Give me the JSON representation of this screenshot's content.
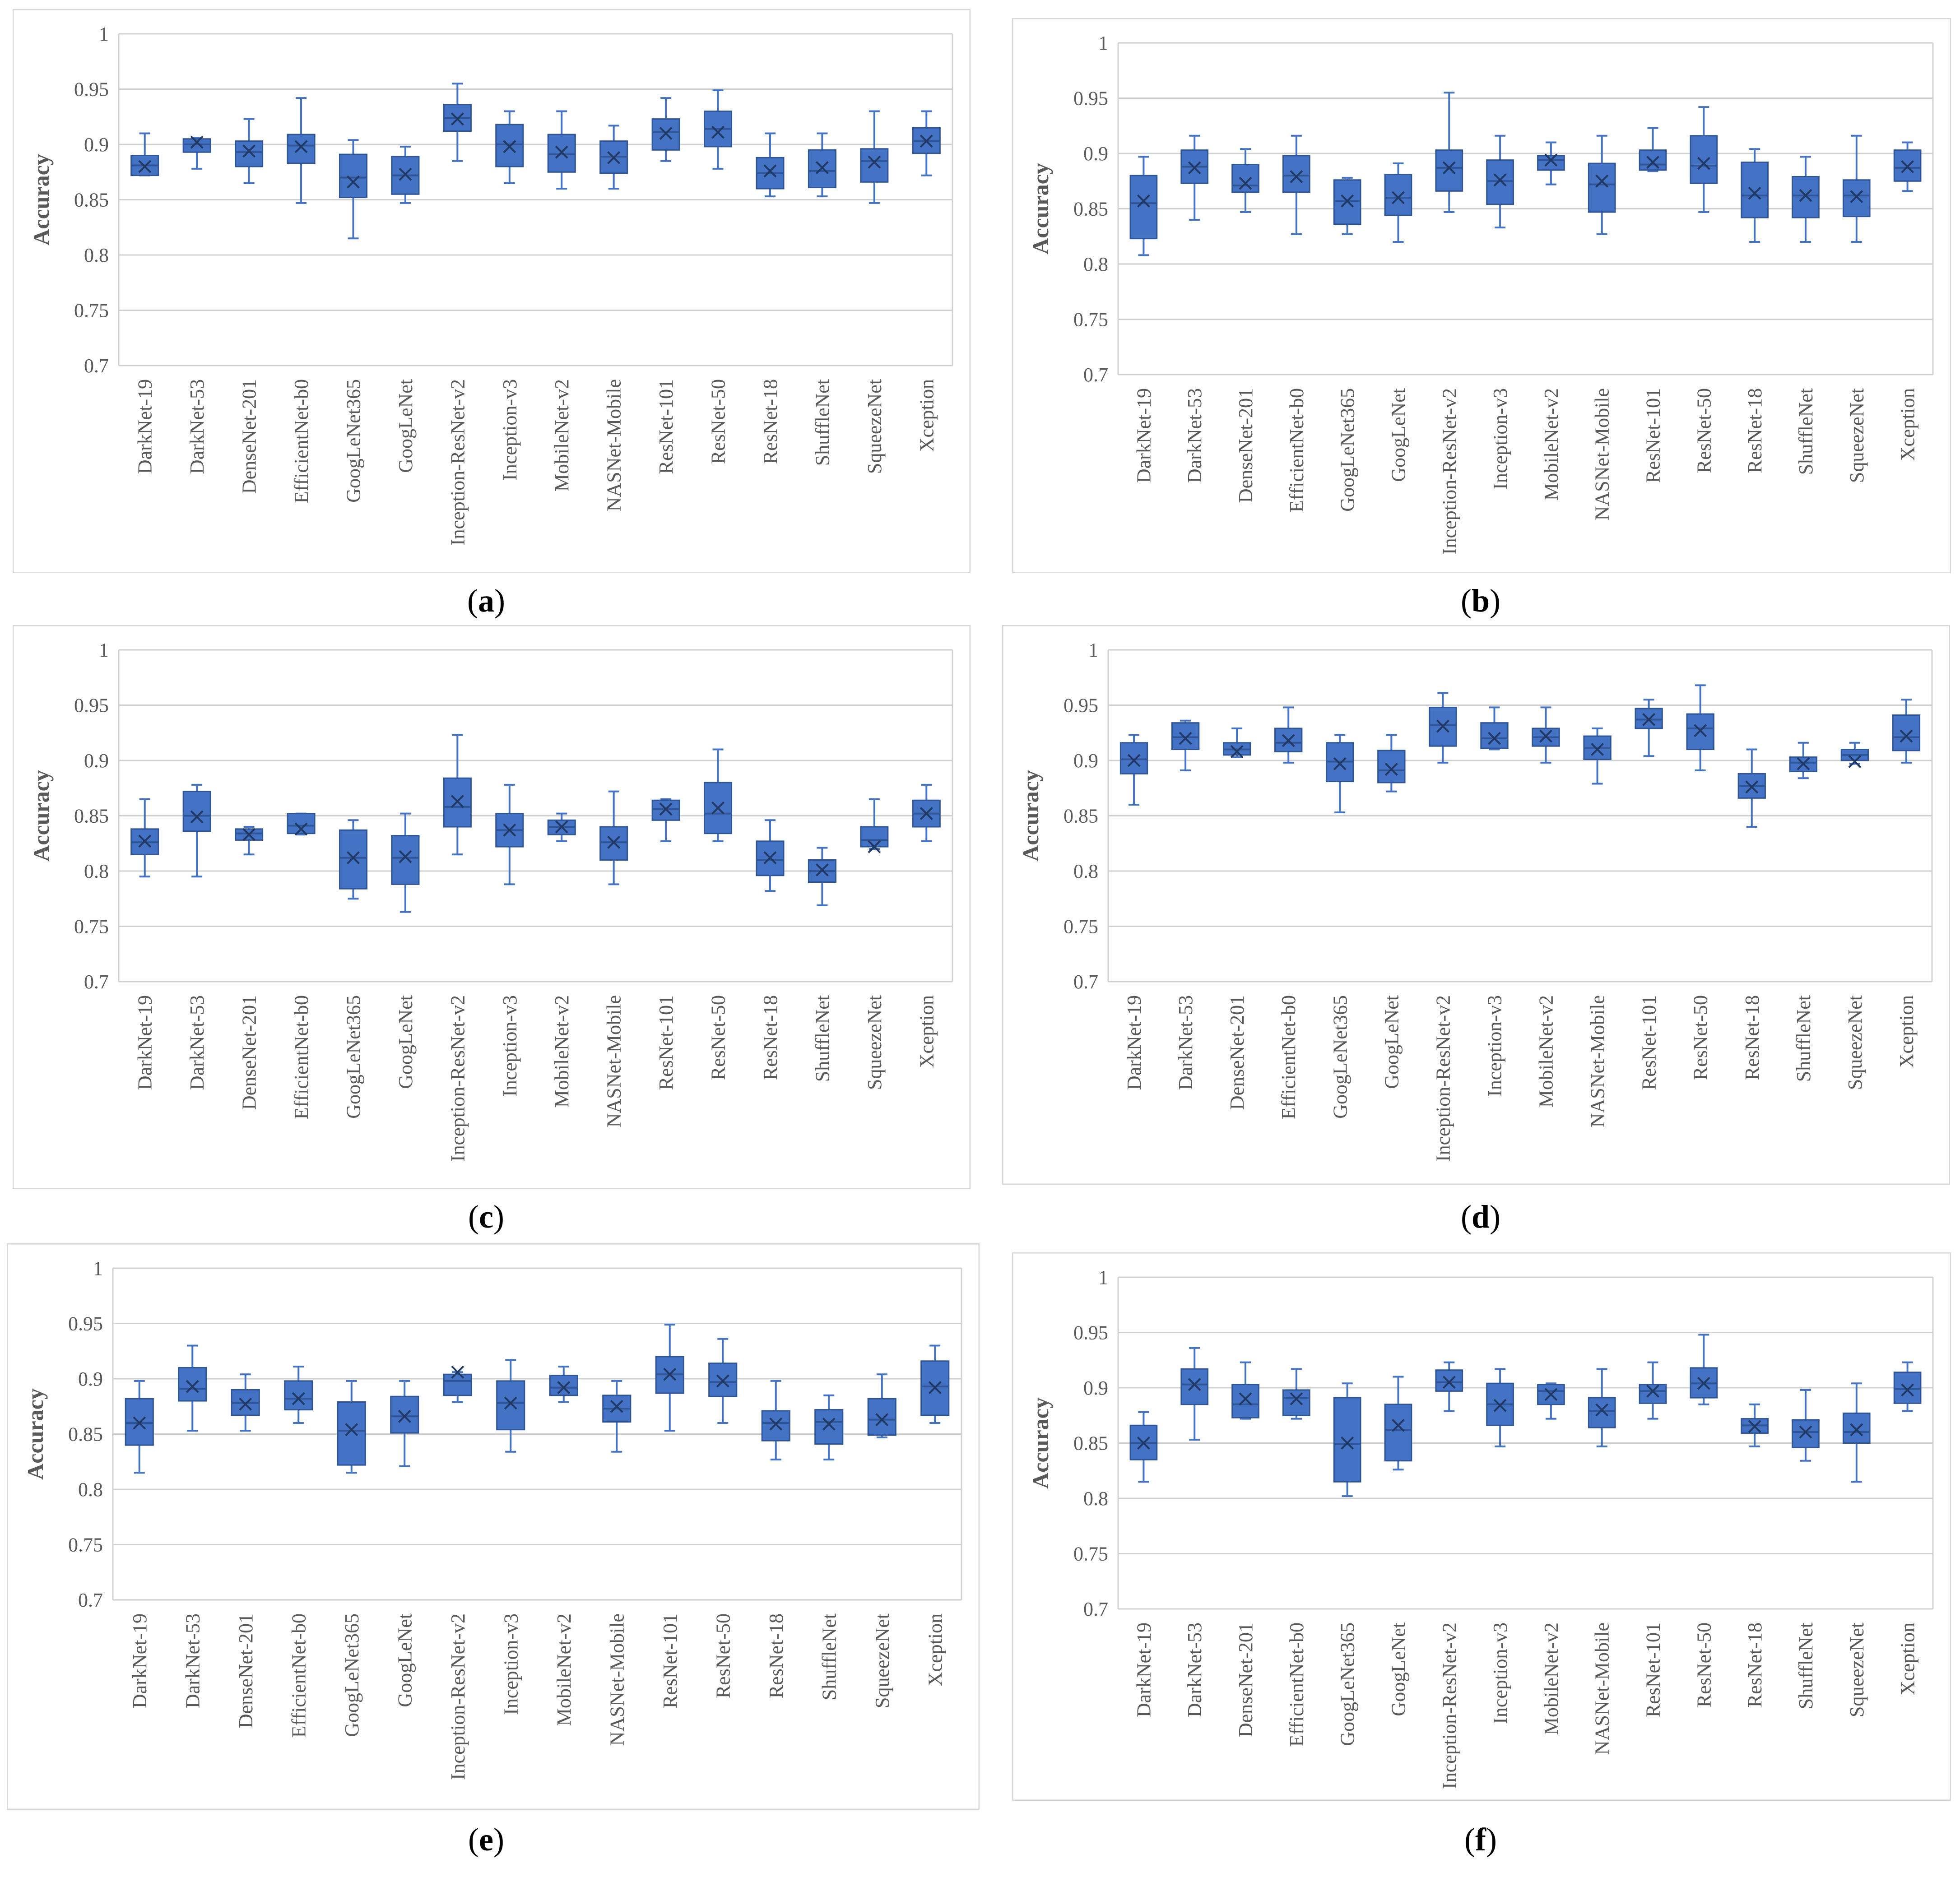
{
  "common": {
    "categories": [
      "DarkNet-19",
      "DarkNet-53",
      "DenseNet-201",
      "EfficientNet-b0",
      "GoogLeNet365",
      "GoogLeNet",
      "Inception-ResNet-v2",
      "Inception-v3",
      "MobileNet-v2",
      "NASNet-Mobile",
      "ResNet-101",
      "ResNet-50",
      "ResNet-18",
      "ShuffleNet",
      "SqueezeNet",
      "Xception"
    ],
    "ylabel": "Accuracy",
    "yticks": [
      "0.7",
      "0.75",
      "0.8",
      "0.85",
      "0.9",
      "0.95",
      "1"
    ],
    "box_color": "#4472c4",
    "edge_color": "#2f5597",
    "frame_color": "#d9d9d9",
    "grid_color": "#d0d0d0"
  },
  "chart_data": [
    {
      "type": "box",
      "label": "a",
      "ylim": [
        0.7,
        1.0
      ],
      "ylabel": "Accuracy",
      "grid": true,
      "categories": [
        "DarkNet-19",
        "DarkNet-53",
        "DenseNet-201",
        "EfficientNet-b0",
        "GoogLeNet365",
        "GoogLeNet",
        "Inception-ResNet-v2",
        "Inception-v3",
        "MobileNet-v2",
        "NASNet-Mobile",
        "ResNet-101",
        "ResNet-50",
        "ResNet-18",
        "ShuffleNet",
        "SqueezeNet",
        "Xception"
      ],
      "boxes": [
        {
          "min": 0.872,
          "q1": 0.872,
          "median": 0.881,
          "q3": 0.89,
          "max": 0.91,
          "mean": 0.88
        },
        {
          "min": 0.878,
          "q1": 0.893,
          "median": 0.9,
          "q3": 0.905,
          "max": 0.906,
          "mean": 0.902
        },
        {
          "min": 0.865,
          "q1": 0.88,
          "median": 0.893,
          "q3": 0.903,
          "max": 0.923,
          "mean": 0.894
        },
        {
          "min": 0.847,
          "q1": 0.883,
          "median": 0.899,
          "q3": 0.909,
          "max": 0.942,
          "mean": 0.898
        },
        {
          "min": 0.815,
          "q1": 0.852,
          "median": 0.87,
          "q3": 0.891,
          "max": 0.904,
          "mean": 0.866
        },
        {
          "min": 0.847,
          "q1": 0.855,
          "median": 0.872,
          "q3": 0.889,
          "max": 0.898,
          "mean": 0.873
        },
        {
          "min": 0.885,
          "q1": 0.912,
          "median": 0.924,
          "q3": 0.936,
          "max": 0.955,
          "mean": 0.923
        },
        {
          "min": 0.865,
          "q1": 0.88,
          "median": 0.9,
          "q3": 0.918,
          "max": 0.93,
          "mean": 0.898
        },
        {
          "min": 0.86,
          "q1": 0.875,
          "median": 0.891,
          "q3": 0.909,
          "max": 0.93,
          "mean": 0.893
        },
        {
          "min": 0.86,
          "q1": 0.874,
          "median": 0.889,
          "q3": 0.903,
          "max": 0.917,
          "mean": 0.888
        },
        {
          "min": 0.885,
          "q1": 0.895,
          "median": 0.911,
          "q3": 0.923,
          "max": 0.942,
          "mean": 0.91
        },
        {
          "min": 0.878,
          "q1": 0.898,
          "median": 0.914,
          "q3": 0.93,
          "max": 0.949,
          "mean": 0.911
        },
        {
          "min": 0.853,
          "q1": 0.86,
          "median": 0.874,
          "q3": 0.888,
          "max": 0.91,
          "mean": 0.876
        },
        {
          "min": 0.853,
          "q1": 0.861,
          "median": 0.876,
          "q3": 0.895,
          "max": 0.91,
          "mean": 0.879
        },
        {
          "min": 0.847,
          "q1": 0.866,
          "median": 0.885,
          "q3": 0.896,
          "max": 0.93,
          "mean": 0.884
        },
        {
          "min": 0.872,
          "q1": 0.892,
          "median": 0.903,
          "q3": 0.915,
          "max": 0.93,
          "mean": 0.903
        }
      ]
    },
    {
      "type": "box",
      "label": "b",
      "ylim": [
        0.7,
        1.0
      ],
      "ylabel": "Accuracy",
      "grid": true,
      "categories": [
        "DarkNet-19",
        "DarkNet-53",
        "DenseNet-201",
        "EfficientNet-b0",
        "GoogLeNet365",
        "GoogLeNet",
        "Inception-ResNet-v2",
        "Inception-v3",
        "MobileNet-v2",
        "NASNet-Mobile",
        "ResNet-101",
        "ResNet-50",
        "ResNet-18",
        "ShuffleNet",
        "SqueezeNet",
        "Xception"
      ],
      "boxes": [
        {
          "min": 0.808,
          "q1": 0.823,
          "median": 0.855,
          "q3": 0.88,
          "max": 0.897,
          "mean": 0.857
        },
        {
          "min": 0.84,
          "q1": 0.873,
          "median": 0.888,
          "q3": 0.903,
          "max": 0.916,
          "mean": 0.887
        },
        {
          "min": 0.847,
          "q1": 0.865,
          "median": 0.871,
          "q3": 0.89,
          "max": 0.904,
          "mean": 0.873
        },
        {
          "min": 0.827,
          "q1": 0.865,
          "median": 0.88,
          "q3": 0.898,
          "max": 0.916,
          "mean": 0.879
        },
        {
          "min": 0.827,
          "q1": 0.836,
          "median": 0.857,
          "q3": 0.876,
          "max": 0.878,
          "mean": 0.857
        },
        {
          "min": 0.82,
          "q1": 0.844,
          "median": 0.86,
          "q3": 0.881,
          "max": 0.891,
          "mean": 0.86
        },
        {
          "min": 0.847,
          "q1": 0.866,
          "median": 0.887,
          "q3": 0.903,
          "max": 0.955,
          "mean": 0.887
        },
        {
          "min": 0.833,
          "q1": 0.854,
          "median": 0.875,
          "q3": 0.894,
          "max": 0.916,
          "mean": 0.876
        },
        {
          "min": 0.872,
          "q1": 0.885,
          "median": 0.894,
          "q3": 0.898,
          "max": 0.91,
          "mean": 0.894
        },
        {
          "min": 0.827,
          "q1": 0.847,
          "median": 0.872,
          "q3": 0.891,
          "max": 0.916,
          "mean": 0.875
        },
        {
          "min": 0.884,
          "q1": 0.885,
          "median": 0.89,
          "q3": 0.903,
          "max": 0.923,
          "mean": 0.892
        },
        {
          "min": 0.847,
          "q1": 0.873,
          "median": 0.889,
          "q3": 0.916,
          "max": 0.942,
          "mean": 0.891
        },
        {
          "min": 0.82,
          "q1": 0.842,
          "median": 0.862,
          "q3": 0.892,
          "max": 0.904,
          "mean": 0.864
        },
        {
          "min": 0.82,
          "q1": 0.842,
          "median": 0.862,
          "q3": 0.879,
          "max": 0.897,
          "mean": 0.862
        },
        {
          "min": 0.82,
          "q1": 0.843,
          "median": 0.862,
          "q3": 0.876,
          "max": 0.916,
          "mean": 0.861
        },
        {
          "min": 0.866,
          "q1": 0.875,
          "median": 0.887,
          "q3": 0.903,
          "max": 0.91,
          "mean": 0.888
        }
      ]
    },
    {
      "type": "box",
      "label": "c",
      "ylim": [
        0.7,
        1.0
      ],
      "ylabel": "Accuracy",
      "grid": true,
      "categories": [
        "DarkNet-19",
        "DarkNet-53",
        "DenseNet-201",
        "EfficientNet-b0",
        "GoogLeNet365",
        "GoogLeNet",
        "Inception-ResNet-v2",
        "Inception-v3",
        "MobileNet-v2",
        "NASNet-Mobile",
        "ResNet-101",
        "ResNet-50",
        "ResNet-18",
        "ShuffleNet",
        "SqueezeNet",
        "Xception"
      ],
      "boxes": [
        {
          "min": 0.795,
          "q1": 0.815,
          "median": 0.826,
          "q3": 0.838,
          "max": 0.865,
          "mean": 0.827
        },
        {
          "min": 0.795,
          "q1": 0.836,
          "median": 0.85,
          "q3": 0.872,
          "max": 0.878,
          "mean": 0.849
        },
        {
          "min": 0.815,
          "q1": 0.828,
          "median": 0.834,
          "q3": 0.838,
          "max": 0.84,
          "mean": 0.833
        },
        {
          "min": 0.833,
          "q1": 0.834,
          "median": 0.841,
          "q3": 0.852,
          "max": 0.852,
          "mean": 0.838
        },
        {
          "min": 0.775,
          "q1": 0.784,
          "median": 0.812,
          "q3": 0.837,
          "max": 0.846,
          "mean": 0.812
        },
        {
          "min": 0.763,
          "q1": 0.788,
          "median": 0.812,
          "q3": 0.832,
          "max": 0.852,
          "mean": 0.813
        },
        {
          "min": 0.815,
          "q1": 0.84,
          "median": 0.858,
          "q3": 0.884,
          "max": 0.923,
          "mean": 0.863
        },
        {
          "min": 0.788,
          "q1": 0.822,
          "median": 0.837,
          "q3": 0.852,
          "max": 0.878,
          "mean": 0.837
        },
        {
          "min": 0.827,
          "q1": 0.833,
          "median": 0.84,
          "q3": 0.846,
          "max": 0.852,
          "mean": 0.84
        },
        {
          "min": 0.788,
          "q1": 0.81,
          "median": 0.826,
          "q3": 0.84,
          "max": 0.872,
          "mean": 0.826
        },
        {
          "min": 0.827,
          "q1": 0.846,
          "median": 0.856,
          "q3": 0.864,
          "max": 0.865,
          "mean": 0.856
        },
        {
          "min": 0.827,
          "q1": 0.834,
          "median": 0.852,
          "q3": 0.88,
          "max": 0.91,
          "mean": 0.857
        },
        {
          "min": 0.782,
          "q1": 0.796,
          "median": 0.81,
          "q3": 0.827,
          "max": 0.846,
          "mean": 0.812
        },
        {
          "min": 0.769,
          "q1": 0.79,
          "median": 0.8,
          "q3": 0.81,
          "max": 0.821,
          "mean": 0.801
        },
        {
          "min": 0.82,
          "q1": 0.822,
          "median": 0.828,
          "q3": 0.84,
          "max": 0.865,
          "mean": 0.822
        },
        {
          "min": 0.827,
          "q1": 0.84,
          "median": 0.852,
          "q3": 0.864,
          "max": 0.878,
          "mean": 0.852
        }
      ]
    },
    {
      "type": "box",
      "label": "d",
      "ylim": [
        0.7,
        1.0
      ],
      "ylabel": "Accuracy",
      "grid": true,
      "categories": [
        "DarkNet-19",
        "DarkNet-53",
        "DenseNet-201",
        "EfficientNet-b0",
        "GoogLeNet365",
        "GoogLeNet",
        "Inception-ResNet-v2",
        "Inception-v3",
        "MobileNet-v2",
        "NASNet-Mobile",
        "ResNet-101",
        "ResNet-50",
        "ResNet-18",
        "ShuffleNet",
        "SqueezeNet",
        "Xception"
      ],
      "boxes": [
        {
          "min": 0.86,
          "q1": 0.888,
          "median": 0.901,
          "q3": 0.916,
          "max": 0.923,
          "mean": 0.9
        },
        {
          "min": 0.891,
          "q1": 0.91,
          "median": 0.921,
          "q3": 0.934,
          "max": 0.936,
          "mean": 0.92
        },
        {
          "min": 0.903,
          "q1": 0.905,
          "median": 0.91,
          "q3": 0.916,
          "max": 0.929,
          "mean": 0.908
        },
        {
          "min": 0.898,
          "q1": 0.908,
          "median": 0.916,
          "q3": 0.929,
          "max": 0.948,
          "mean": 0.918
        },
        {
          "min": 0.853,
          "q1": 0.881,
          "median": 0.899,
          "q3": 0.916,
          "max": 0.923,
          "mean": 0.897
        },
        {
          "min": 0.872,
          "q1": 0.88,
          "median": 0.891,
          "q3": 0.909,
          "max": 0.923,
          "mean": 0.892
        },
        {
          "min": 0.898,
          "q1": 0.913,
          "median": 0.932,
          "q3": 0.948,
          "max": 0.961,
          "mean": 0.931
        },
        {
          "min": 0.91,
          "q1": 0.911,
          "median": 0.92,
          "q3": 0.934,
          "max": 0.948,
          "mean": 0.92
        },
        {
          "min": 0.898,
          "q1": 0.913,
          "median": 0.921,
          "q3": 0.929,
          "max": 0.948,
          "mean": 0.922
        },
        {
          "min": 0.879,
          "q1": 0.901,
          "median": 0.911,
          "q3": 0.922,
          "max": 0.929,
          "mean": 0.91
        },
        {
          "min": 0.904,
          "q1": 0.929,
          "median": 0.937,
          "q3": 0.947,
          "max": 0.955,
          "mean": 0.937
        },
        {
          "min": 0.891,
          "q1": 0.91,
          "median": 0.929,
          "q3": 0.942,
          "max": 0.968,
          "mean": 0.927
        },
        {
          "min": 0.84,
          "q1": 0.866,
          "median": 0.877,
          "q3": 0.888,
          "max": 0.91,
          "mean": 0.876
        },
        {
          "min": 0.884,
          "q1": 0.89,
          "median": 0.898,
          "q3": 0.903,
          "max": 0.916,
          "mean": 0.897
        },
        {
          "min": 0.897,
          "q1": 0.9,
          "median": 0.905,
          "q3": 0.91,
          "max": 0.916,
          "mean": 0.899
        },
        {
          "min": 0.898,
          "q1": 0.909,
          "median": 0.921,
          "q3": 0.941,
          "max": 0.955,
          "mean": 0.922
        }
      ]
    },
    {
      "type": "box",
      "label": "e",
      "ylim": [
        0.7,
        1.0
      ],
      "ylabel": "Accuracy",
      "grid": true,
      "categories": [
        "DarkNet-19",
        "DarkNet-53",
        "DenseNet-201",
        "EfficientNet-b0",
        "GoogLeNet365",
        "GoogLeNet",
        "Inception-ResNet-v2",
        "Inception-v3",
        "MobileNet-v2",
        "NASNet-Mobile",
        "ResNet-101",
        "ResNet-50",
        "ResNet-18",
        "ShuffleNet",
        "SqueezeNet",
        "Xception"
      ],
      "boxes": [
        {
          "min": 0.815,
          "q1": 0.84,
          "median": 0.86,
          "q3": 0.882,
          "max": 0.898,
          "mean": 0.86
        },
        {
          "min": 0.853,
          "q1": 0.88,
          "median": 0.891,
          "q3": 0.91,
          "max": 0.93,
          "mean": 0.893
        },
        {
          "min": 0.853,
          "q1": 0.867,
          "median": 0.878,
          "q3": 0.89,
          "max": 0.904,
          "mean": 0.877
        },
        {
          "min": 0.86,
          "q1": 0.872,
          "median": 0.882,
          "q3": 0.898,
          "max": 0.911,
          "mean": 0.882
        },
        {
          "min": 0.815,
          "q1": 0.822,
          "median": 0.853,
          "q3": 0.879,
          "max": 0.898,
          "mean": 0.854
        },
        {
          "min": 0.821,
          "q1": 0.851,
          "median": 0.866,
          "q3": 0.884,
          "max": 0.898,
          "mean": 0.866
        },
        {
          "min": 0.879,
          "q1": 0.885,
          "median": 0.898,
          "q3": 0.904,
          "max": 0.906,
          "mean": 0.906
        },
        {
          "min": 0.834,
          "q1": 0.854,
          "median": 0.878,
          "q3": 0.898,
          "max": 0.917,
          "mean": 0.878
        },
        {
          "min": 0.879,
          "q1": 0.885,
          "median": 0.892,
          "q3": 0.903,
          "max": 0.911,
          "mean": 0.892
        },
        {
          "min": 0.834,
          "q1": 0.861,
          "median": 0.873,
          "q3": 0.885,
          "max": 0.898,
          "mean": 0.875
        },
        {
          "min": 0.853,
          "q1": 0.887,
          "median": 0.904,
          "q3": 0.92,
          "max": 0.949,
          "mean": 0.904
        },
        {
          "min": 0.86,
          "q1": 0.884,
          "median": 0.897,
          "q3": 0.914,
          "max": 0.936,
          "mean": 0.898
        },
        {
          "min": 0.827,
          "q1": 0.844,
          "median": 0.86,
          "q3": 0.871,
          "max": 0.898,
          "mean": 0.859
        },
        {
          "min": 0.827,
          "q1": 0.841,
          "median": 0.861,
          "q3": 0.872,
          "max": 0.885,
          "mean": 0.859
        },
        {
          "min": 0.847,
          "q1": 0.849,
          "median": 0.863,
          "q3": 0.882,
          "max": 0.904,
          "mean": 0.863
        },
        {
          "min": 0.86,
          "q1": 0.867,
          "median": 0.893,
          "q3": 0.916,
          "max": 0.93,
          "mean": 0.892
        }
      ]
    },
    {
      "type": "box",
      "label": "f",
      "ylim": [
        0.7,
        1.0
      ],
      "ylabel": "Accuracy",
      "grid": true,
      "categories": [
        "DarkNet-19",
        "DarkNet-53",
        "DenseNet-201",
        "EfficientNet-b0",
        "GoogLeNet365",
        "GoogLeNet",
        "Inception-ResNet-v2",
        "Inception-v3",
        "MobileNet-v2",
        "NASNet-Mobile",
        "ResNet-101",
        "ResNet-50",
        "ResNet-18",
        "ShuffleNet",
        "SqueezeNet",
        "Xception"
      ],
      "boxes": [
        {
          "min": 0.815,
          "q1": 0.835,
          "median": 0.85,
          "q3": 0.866,
          "max": 0.878,
          "mean": 0.85
        },
        {
          "min": 0.853,
          "q1": 0.885,
          "median": 0.903,
          "q3": 0.917,
          "max": 0.936,
          "mean": 0.903
        },
        {
          "min": 0.872,
          "q1": 0.873,
          "median": 0.885,
          "q3": 0.903,
          "max": 0.923,
          "mean": 0.89
        },
        {
          "min": 0.872,
          "q1": 0.875,
          "median": 0.891,
          "q3": 0.898,
          "max": 0.917,
          "mean": 0.89
        },
        {
          "min": 0.802,
          "q1": 0.815,
          "median": 0.849,
          "q3": 0.891,
          "max": 0.904,
          "mean": 0.85
        },
        {
          "min": 0.826,
          "q1": 0.834,
          "median": 0.862,
          "q3": 0.885,
          "max": 0.91,
          "mean": 0.866
        },
        {
          "min": 0.879,
          "q1": 0.897,
          "median": 0.905,
          "q3": 0.916,
          "max": 0.923,
          "mean": 0.905
        },
        {
          "min": 0.847,
          "q1": 0.866,
          "median": 0.885,
          "q3": 0.904,
          "max": 0.917,
          "mean": 0.884
        },
        {
          "min": 0.872,
          "q1": 0.885,
          "median": 0.897,
          "q3": 0.903,
          "max": 0.904,
          "mean": 0.894
        },
        {
          "min": 0.847,
          "q1": 0.864,
          "median": 0.879,
          "q3": 0.891,
          "max": 0.917,
          "mean": 0.88
        },
        {
          "min": 0.872,
          "q1": 0.886,
          "median": 0.897,
          "q3": 0.903,
          "max": 0.923,
          "mean": 0.897
        },
        {
          "min": 0.885,
          "q1": 0.891,
          "median": 0.904,
          "q3": 0.918,
          "max": 0.948,
          "mean": 0.904
        },
        {
          "min": 0.847,
          "q1": 0.859,
          "median": 0.866,
          "q3": 0.872,
          "max": 0.885,
          "mean": 0.865
        },
        {
          "min": 0.834,
          "q1": 0.846,
          "median": 0.86,
          "q3": 0.871,
          "max": 0.898,
          "mean": 0.86
        },
        {
          "min": 0.815,
          "q1": 0.85,
          "median": 0.86,
          "q3": 0.877,
          "max": 0.904,
          "mean": 0.862
        },
        {
          "min": 0.879,
          "q1": 0.886,
          "median": 0.899,
          "q3": 0.914,
          "max": 0.923,
          "mean": 0.898
        }
      ]
    }
  ]
}
